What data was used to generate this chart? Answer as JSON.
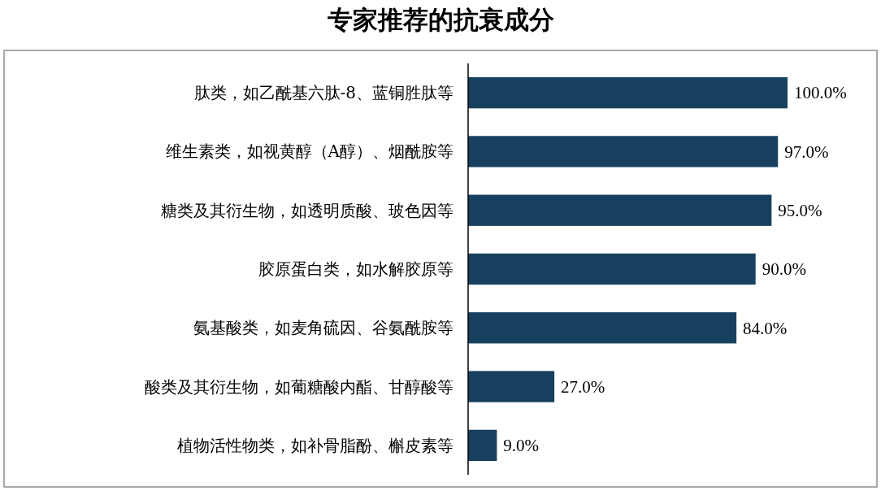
{
  "chart_data": {
    "type": "bar",
    "orientation": "horizontal",
    "title": "专家推荐的抗衰成分",
    "categories": [
      "肽类，如乙酰基六肽-8、蓝铜胜肽等",
      "维生素类，如视黄醇（A醇）、烟酰胺等",
      "糖类及其衍生物，如透明质酸、玻色因等",
      "胶原蛋白类，如水解胶原等",
      "氨基酸类，如麦角硫因、谷氨酰胺等",
      "酸类及其衍生物，如葡糖酸内酯、甘醇酸等",
      "植物活性物类，如补骨脂酚、槲皮素等"
    ],
    "values": [
      100,
      97,
      95,
      90,
      84,
      27,
      9
    ],
    "value_labels": [
      "100.0%",
      "97.0%",
      "95.0%",
      "90.0%",
      "84.0%",
      "27.0%",
      "9.0%"
    ],
    "color": "#17405f"
  }
}
